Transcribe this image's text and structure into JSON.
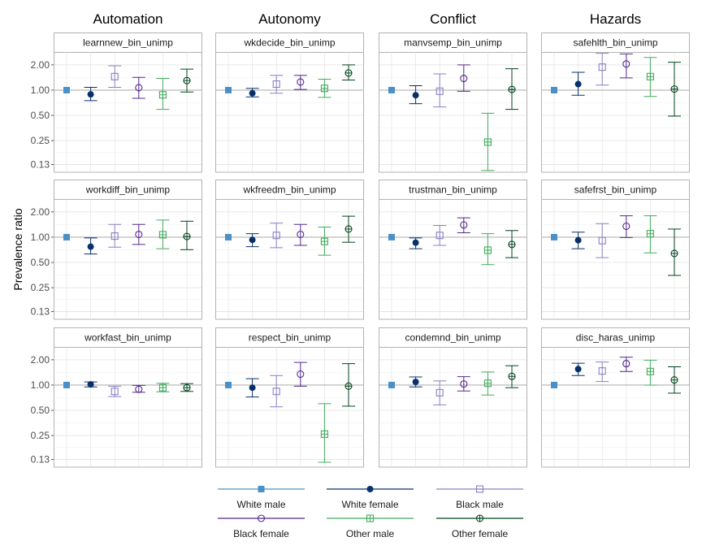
{
  "chart_data": {
    "type": "scatter",
    "ylabel": "Prevalence ratio",
    "y_scale": "log",
    "y_ticks": [
      0.13,
      0.25,
      0.5,
      1.0,
      2.0
    ],
    "y_tick_labels": [
      "0.13",
      "0.25",
      "0.50",
      "1.00",
      "2.00"
    ],
    "reference_line": 1.0,
    "columns": [
      "Automation",
      "Autonomy",
      "Conflict",
      "Hazards"
    ],
    "groups": [
      {
        "name": "White male",
        "color": "#4a90c8",
        "marker": "square-filled"
      },
      {
        "name": "White female",
        "color": "#08306b",
        "marker": "circle-filled"
      },
      {
        "name": "Black male",
        "color": "#8c7fc4",
        "marker": "square-open"
      },
      {
        "name": "Black female",
        "color": "#54278f",
        "marker": "circle-open"
      },
      {
        "name": "Other male",
        "color": "#41ab5d",
        "marker": "square-cross"
      },
      {
        "name": "Other female",
        "color": "#00441b",
        "marker": "circle-cross"
      }
    ],
    "panels": [
      {
        "title": "learnnew_bin_unimp",
        "col": 0,
        "row": 0,
        "est": [
          1.0,
          0.89,
          1.45,
          1.07,
          0.88,
          1.3
        ],
        "lo": [
          null,
          0.75,
          1.08,
          0.8,
          0.59,
          0.95
        ],
        "hi": [
          null,
          1.08,
          1.95,
          1.42,
          1.38,
          1.78
        ]
      },
      {
        "title": "wkdecide_bin_unimp",
        "col": 1,
        "row": 0,
        "est": [
          1.0,
          0.92,
          1.18,
          1.25,
          1.05,
          1.6
        ],
        "lo": [
          null,
          0.83,
          0.92,
          1.02,
          0.82,
          1.32
        ],
        "hi": [
          null,
          1.05,
          1.5,
          1.5,
          1.35,
          2.0
        ]
      },
      {
        "title": "manvsemp_bin_unimp",
        "col": 2,
        "row": 0,
        "est": [
          1.0,
          0.87,
          0.97,
          1.38,
          0.24,
          1.02
        ],
        "lo": [
          null,
          0.69,
          0.63,
          0.97,
          0.11,
          0.59
        ],
        "hi": [
          null,
          1.13,
          1.56,
          2.0,
          0.53,
          1.8
        ]
      },
      {
        "title": "safehlth_bin_unimp",
        "col": 3,
        "row": 0,
        "est": [
          1.0,
          1.18,
          1.88,
          2.05,
          1.45,
          1.03
        ],
        "lo": [
          null,
          0.87,
          1.15,
          1.4,
          0.84,
          0.49
        ],
        "hi": [
          null,
          1.63,
          2.75,
          2.7,
          2.45,
          2.15
        ]
      },
      {
        "title": "workdiff_bin_unimp",
        "col": 0,
        "row": 1,
        "est": [
          1.0,
          0.77,
          1.03,
          1.08,
          1.07,
          1.02
        ],
        "lo": [
          null,
          0.63,
          0.76,
          0.82,
          0.73,
          0.71
        ],
        "hi": [
          null,
          0.98,
          1.42,
          1.42,
          1.6,
          1.55
        ]
      },
      {
        "title": "wkfreedm_bin_unimp",
        "col": 1,
        "row": 1,
        "est": [
          1.0,
          0.93,
          1.05,
          1.08,
          0.89,
          1.25
        ],
        "lo": [
          null,
          0.77,
          0.75,
          0.8,
          0.61,
          0.87
        ],
        "hi": [
          null,
          1.1,
          1.47,
          1.42,
          1.32,
          1.78
        ]
      },
      {
        "title": "trustman_bin_unimp",
        "col": 2,
        "row": 1,
        "est": [
          1.0,
          0.86,
          1.05,
          1.4,
          0.7,
          0.82
        ],
        "lo": [
          null,
          0.73,
          0.8,
          1.13,
          0.47,
          0.57
        ],
        "hi": [
          null,
          0.98,
          1.38,
          1.7,
          1.1,
          1.2
        ]
      },
      {
        "title": "safefrst_bin_unimp",
        "col": 3,
        "row": 1,
        "est": [
          1.0,
          0.92,
          0.91,
          1.35,
          1.1,
          0.64
        ],
        "lo": [
          null,
          0.73,
          0.57,
          0.99,
          0.65,
          0.35
        ],
        "hi": [
          null,
          1.15,
          1.45,
          1.8,
          1.8,
          1.25
        ]
      },
      {
        "title": "workfast_bin_unimp",
        "col": 0,
        "row": 2,
        "est": [
          1.0,
          1.02,
          0.84,
          0.89,
          0.93,
          0.93
        ],
        "lo": [
          null,
          0.95,
          0.73,
          0.82,
          0.83,
          0.84
        ],
        "hi": [
          null,
          1.09,
          0.97,
          0.99,
          1.05,
          1.04
        ]
      },
      {
        "title": "respect_bin_unimp",
        "col": 1,
        "row": 2,
        "est": [
          1.0,
          0.93,
          0.84,
          1.35,
          0.26,
          0.97
        ],
        "lo": [
          null,
          0.72,
          0.55,
          0.97,
          0.12,
          0.56
        ],
        "hi": [
          null,
          1.19,
          1.3,
          1.86,
          0.6,
          1.8
        ]
      },
      {
        "title": "condemnd_bin_unimp",
        "col": 2,
        "row": 2,
        "est": [
          1.0,
          1.09,
          0.81,
          1.03,
          1.05,
          1.27
        ],
        "lo": [
          null,
          0.95,
          0.58,
          0.85,
          0.76,
          0.93
        ],
        "hi": [
          null,
          1.25,
          1.12,
          1.26,
          1.43,
          1.7
        ]
      },
      {
        "title": "disc_haras_unimp",
        "col": 3,
        "row": 2,
        "est": [
          1.0,
          1.55,
          1.47,
          1.8,
          1.45,
          1.15
        ],
        "lo": [
          null,
          1.3,
          1.1,
          1.45,
          1.0,
          0.8
        ],
        "hi": [
          null,
          1.82,
          1.88,
          2.15,
          1.98,
          1.65
        ]
      }
    ]
  }
}
